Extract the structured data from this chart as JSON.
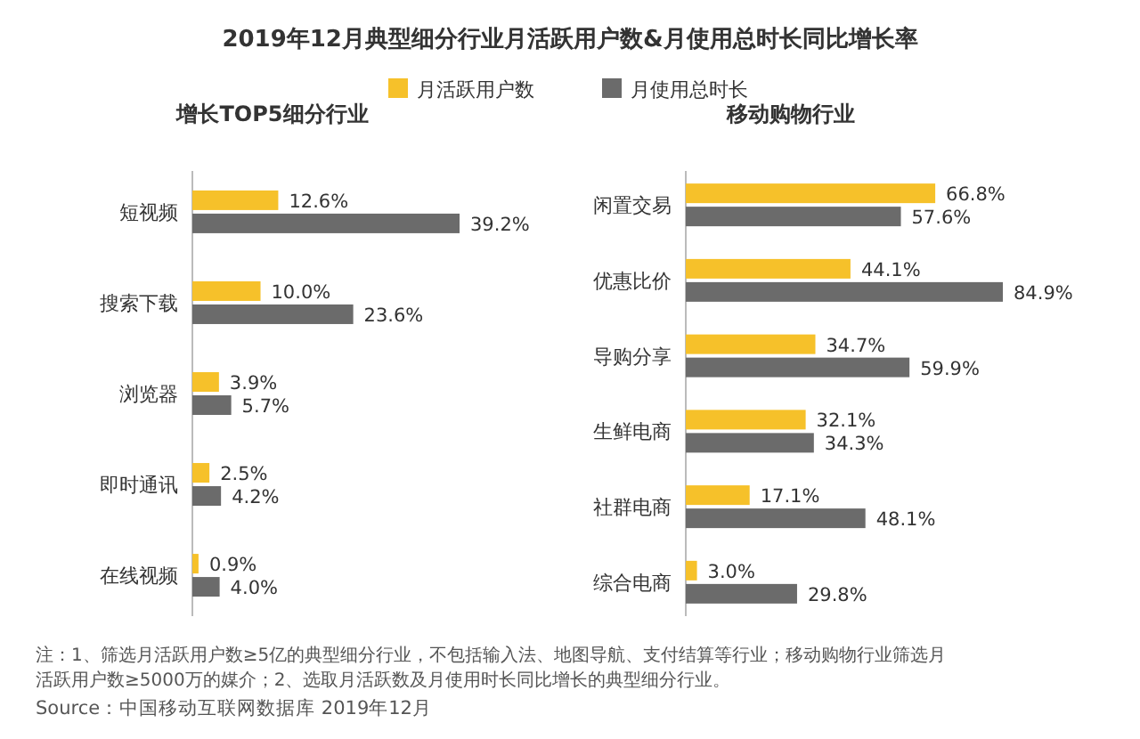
{
  "chart_data": [
    {
      "type": "bar",
      "orientation": "horizontal",
      "title": "2019年12月典型细分行业月活跃用户数&月使用总时长同比增长率",
      "subtitle": "增长TOP5细分行业",
      "categories": [
        "短视频",
        "搜索下载",
        "浏览器",
        "即时通讯",
        "在线视频"
      ],
      "series": [
        {
          "name": "月活跃用户数",
          "color": "#f6c12a",
          "values": [
            12.6,
            10.0,
            3.9,
            2.5,
            0.9
          ],
          "value_labels": [
            "12.6%",
            "10.0%",
            "3.9%",
            "2.5%",
            "0.9%"
          ]
        },
        {
          "name": "月使用总时长",
          "color": "#6b6b6b",
          "values": [
            39.2,
            23.6,
            5.7,
            4.2,
            4.0
          ],
          "value_labels": [
            "39.2%",
            "23.6%",
            "5.7%",
            "4.2%",
            "4.0%"
          ]
        }
      ],
      "legend": "top",
      "annotations": [
        "注：1、筛选月活跃用户数≥5亿的典型细分行业，不包括输入法、地图导航、支付结算等行业；移动购物行业筛选月活跃用户数≥5000万的媒介；2、选取月活跃数及月使用时长同比增长的典型细分行业。",
        "Source：中国移动互联网数据库 2019年12月"
      ]
    },
    {
      "type": "bar",
      "orientation": "horizontal",
      "title": "移动购物行业",
      "categories": [
        "闲置交易",
        "优惠比价",
        "导购分享",
        "生鲜电商",
        "社群电商",
        "综合电商"
      ],
      "series": [
        {
          "color": "#f6c12a",
          "values": [
            66.8,
            44.1,
            34.7,
            32.1,
            17.1,
            3.0
          ],
          "value_labels": [
            "66.8%",
            "44.1%",
            "34.7%",
            "32.1%",
            "17.1%",
            "3.0%"
          ]
        },
        {
          "color": "#6b6b6b",
          "values": [
            57.6,
            84.9,
            59.9,
            34.3,
            48.1,
            29.8
          ],
          "value_labels": [
            "57.6%",
            "84.9%",
            "59.9%",
            "34.3%",
            "48.1%",
            "29.8%"
          ]
        }
      ]
    }
  ]
}
